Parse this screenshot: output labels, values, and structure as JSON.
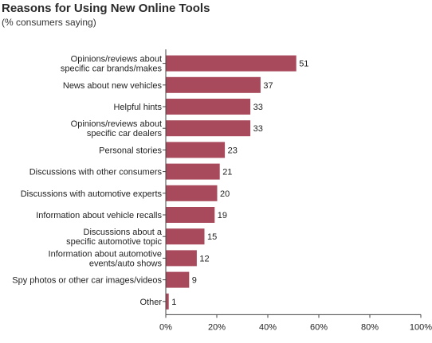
{
  "chart_data": {
    "type": "bar",
    "orientation": "horizontal",
    "title": "Reasons for Using New Online Tools",
    "subtitle": "(% consumers saying)",
    "categories": [
      [
        "Opinions/reviews about",
        "specific car brands/makes"
      ],
      [
        "News about new vehicles"
      ],
      [
        "Helpful hints"
      ],
      [
        "Opinions/reviews about",
        "specific car dealers"
      ],
      [
        "Personal stories"
      ],
      [
        "Discussions with other consumers"
      ],
      [
        "Discussions with automotive experts"
      ],
      [
        "Information about vehicle recalls"
      ],
      [
        "Discussions about a",
        "specific automotive topic"
      ],
      [
        "Information about automotive",
        "events/auto shows"
      ],
      [
        "Spy photos or other car images/videos"
      ],
      [
        "Other"
      ]
    ],
    "values": [
      51,
      37,
      33,
      33,
      23,
      21,
      20,
      19,
      15,
      12,
      9,
      1
    ],
    "xlim": [
      0,
      100
    ],
    "x_ticks": [
      "0%",
      "20%",
      "40%",
      "60%",
      "80%",
      "100%"
    ],
    "x_tick_values": [
      0,
      20,
      40,
      60,
      80,
      100
    ],
    "bar_color": "#a84a5c",
    "grid": false,
    "data_labels": true
  }
}
